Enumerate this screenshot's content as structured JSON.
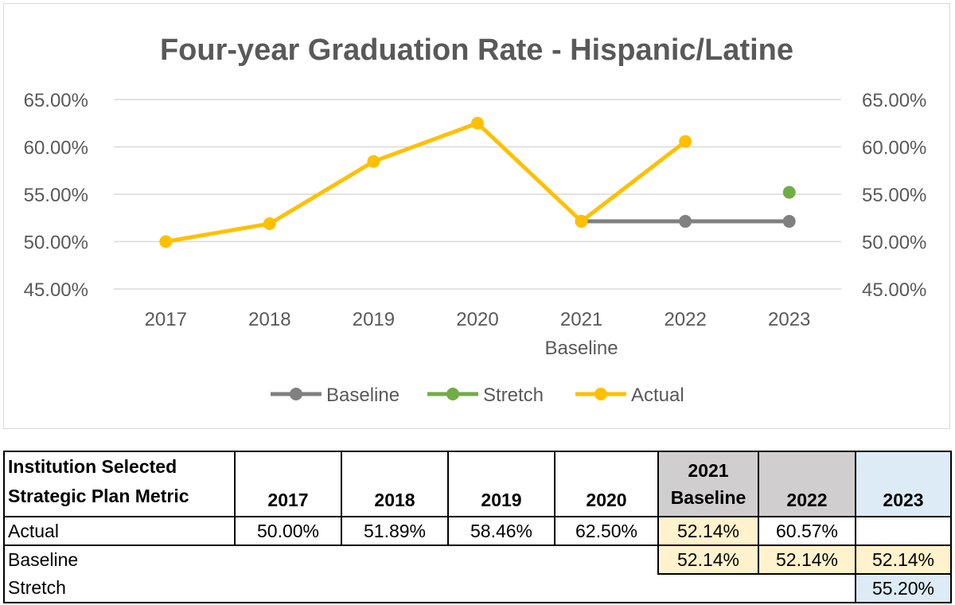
{
  "chart_data": {
    "type": "line",
    "title": "Four-year Graduation Rate - Hispanic/Latine",
    "categories": [
      "2017",
      "2018",
      "2019",
      "2020",
      "2021",
      "2022",
      "2023"
    ],
    "category_sublabels": [
      "",
      "",
      "",
      "",
      "Baseline",
      "",
      ""
    ],
    "ylim": [
      45,
      65
    ],
    "y_ticks": [
      65,
      60,
      55,
      50,
      45
    ],
    "y_tick_labels": [
      "65.00%",
      "60.00%",
      "55.00%",
      "50.00%",
      "45.00%"
    ],
    "secondary_axis": true,
    "grid": true,
    "legend_position": "bottom",
    "series": [
      {
        "name": "Baseline",
        "color": "#808080",
        "values": [
          null,
          null,
          null,
          null,
          52.14,
          52.14,
          52.14
        ]
      },
      {
        "name": "Stretch",
        "color": "#70ad47",
        "values": [
          null,
          null,
          null,
          null,
          null,
          null,
          55.2
        ]
      },
      {
        "name": "Actual",
        "color": "#ffc000",
        "values": [
          50.0,
          51.89,
          58.46,
          62.5,
          52.14,
          60.57,
          null
        ]
      }
    ]
  },
  "table": {
    "header": {
      "metric_line1": "Institution Selected",
      "metric_line2": "Strategic Plan Metric",
      "y2017": "2017",
      "y2018": "2018",
      "y2019": "2019",
      "y2020": "2020",
      "y2021": "2021",
      "y2021_sub": "Baseline",
      "y2022": "2022",
      "y2023": "2023"
    },
    "actual": {
      "label": "Actual",
      "v2017": "50.00%",
      "v2018": "51.89%",
      "v2019": "58.46%",
      "v2020": "62.50%",
      "v2021": "52.14%",
      "v2022": "60.57%"
    },
    "baseline": {
      "label": "Baseline",
      "v2021": "52.14%",
      "v2022": "52.14%",
      "v2023": "52.14%"
    },
    "stretch": {
      "label": "Stretch",
      "v2023": "55.20%"
    }
  }
}
